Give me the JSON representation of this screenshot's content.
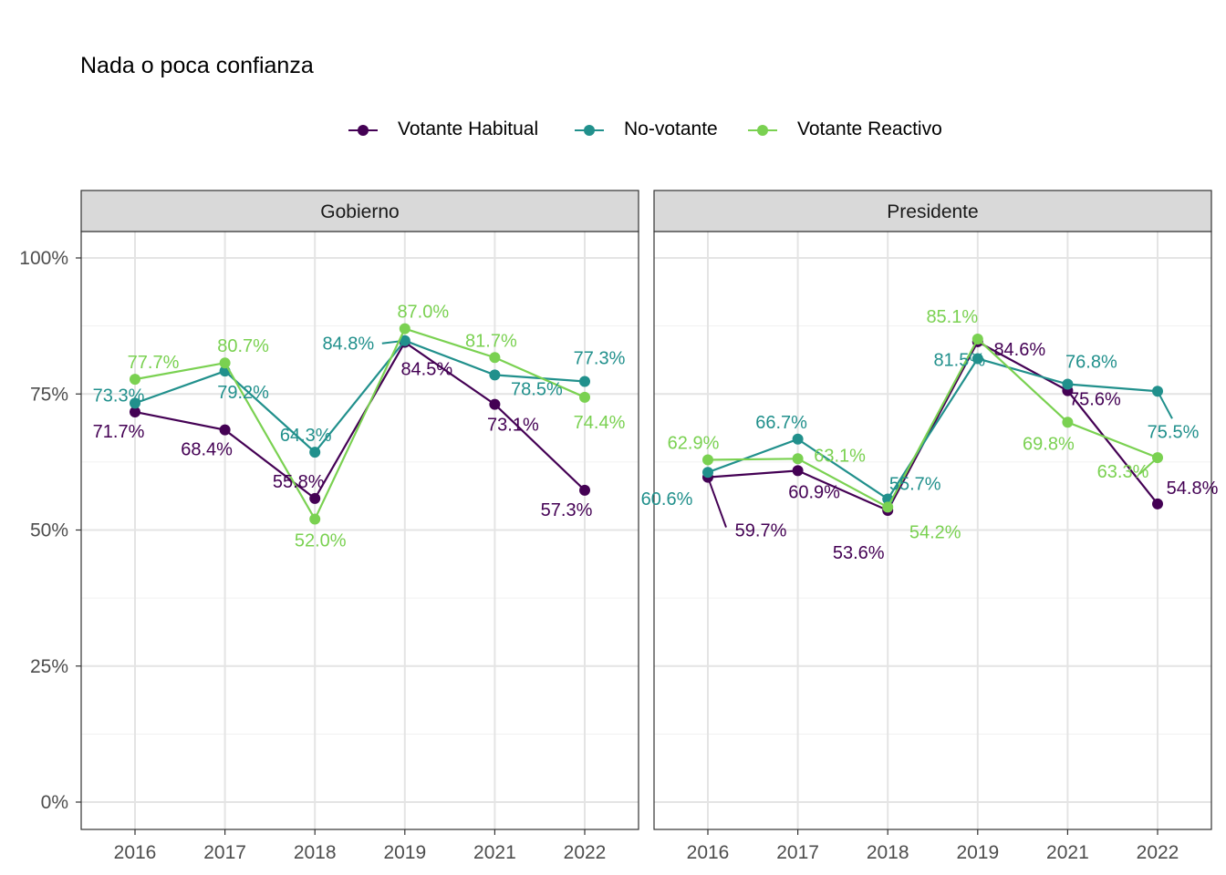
{
  "chart_data": {
    "type": "line",
    "title": "Nada o poca confianza",
    "categories": [
      "2016",
      "2017",
      "2018",
      "2019",
      "2021",
      "2022"
    ],
    "ylim": [
      0,
      100
    ],
    "y_ticks": [
      "0%",
      "25%",
      "50%",
      "75%",
      "100%"
    ],
    "grid": true,
    "legend_position": "top",
    "legend": [
      {
        "name": "Votante Habitual",
        "color": "#440154"
      },
      {
        "name": "No-votante",
        "color": "#21908C"
      },
      {
        "name": "Votante Reactivo",
        "color": "#7AD151"
      }
    ],
    "panels": [
      {
        "title": "Gobierno",
        "series": [
          {
            "name": "Votante Habitual",
            "values": [
              71.7,
              68.4,
              55.8,
              84.5,
              73.1,
              57.3
            ],
            "labels": [
              "71.7%",
              "68.4%",
              "55.8%",
              "84.5%",
              "73.1%",
              "57.3%"
            ]
          },
          {
            "name": "No-votante",
            "values": [
              73.3,
              79.2,
              64.3,
              84.8,
              78.5,
              77.3
            ],
            "labels": [
              "73.3%",
              "79.2%",
              "64.3%",
              "84.8%",
              "78.5%",
              "77.3%"
            ]
          },
          {
            "name": "Votante Reactivo",
            "values": [
              77.7,
              80.7,
              52.0,
              87.0,
              81.7,
              74.4
            ],
            "labels": [
              "77.7%",
              "80.7%",
              "52.0%",
              "87.0%",
              "81.7%",
              "74.4%"
            ]
          }
        ]
      },
      {
        "title": "Presidente",
        "series": [
          {
            "name": "Votante Habitual",
            "values": [
              59.7,
              60.9,
              53.6,
              84.6,
              75.6,
              54.8
            ],
            "labels": [
              "59.7%",
              "60.9%",
              "53.6%",
              "84.6%",
              "75.6%",
              "54.8%"
            ]
          },
          {
            "name": "No-votante",
            "values": [
              60.6,
              66.7,
              55.7,
              81.5,
              76.8,
              75.5
            ],
            "labels": [
              "60.6%",
              "66.7%",
              "55.7%",
              "81.5%",
              "76.8%",
              "75.5%"
            ]
          },
          {
            "name": "Votante Reactivo",
            "values": [
              62.9,
              63.1,
              54.2,
              85.1,
              69.8,
              63.3
            ],
            "labels": [
              "62.9%",
              "63.1%",
              "54.2%",
              "85.1%",
              "69.8%",
              "63.3%"
            ]
          }
        ]
      }
    ]
  }
}
